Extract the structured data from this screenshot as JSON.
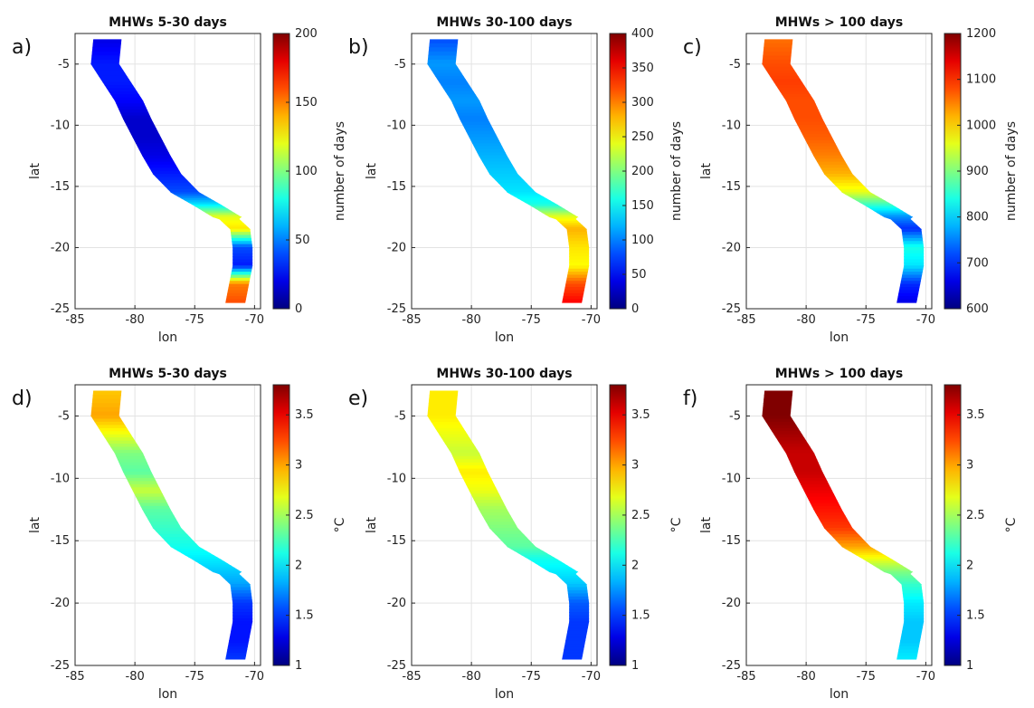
{
  "figure": {
    "shared": {
      "xlabel": "lon",
      "ylabel": "lat",
      "xlim": [
        -85,
        -69.5
      ],
      "ylim": [
        -25,
        -2.5
      ],
      "x_ticks": [
        -85,
        -80,
        -75,
        -70
      ],
      "y_ticks": [
        -5,
        -10,
        -15,
        -20,
        -25
      ],
      "x_tick_labels": [
        "-85",
        "-80",
        "-75",
        "-70"
      ],
      "y_tick_labels": [
        "-5",
        "-10",
        "-15",
        "-20",
        "-25"
      ],
      "grid": true,
      "colormap": "jet"
    },
    "panels": [
      {
        "letter": "a)",
        "title": "MHWs 5-30 days",
        "colorbar_label": "number of days",
        "clim": [
          0,
          200
        ],
        "colorbar_ticks": [
          0,
          50,
          100,
          150,
          200
        ],
        "colorbar_tick_labels": [
          "0",
          "50",
          "100",
          "150",
          "200"
        ],
        "coast_values": [
          20,
          30,
          30,
          25,
          15,
          15,
          20,
          30,
          40,
          70,
          120,
          130,
          40,
          30,
          150,
          160
        ]
      },
      {
        "letter": "b)",
        "title": "MHWs 30-100 days",
        "colorbar_label": "number of days",
        "clim": [
          0,
          400
        ],
        "colorbar_ticks": [
          0,
          50,
          100,
          150,
          200,
          250,
          300,
          350,
          400
        ],
        "colorbar_tick_labels": [
          "0",
          "50",
          "100",
          "150",
          "200",
          "250",
          "300",
          "350",
          "400"
        ],
        "coast_values": [
          80,
          110,
          100,
          110,
          100,
          110,
          120,
          130,
          140,
          160,
          240,
          280,
          260,
          250,
          320,
          350
        ]
      },
      {
        "letter": "c)",
        "title": "MHWs > 100 days",
        "colorbar_label": "number of days",
        "clim": [
          600,
          1200
        ],
        "colorbar_ticks": [
          600,
          700,
          800,
          900,
          1000,
          1100,
          1200
        ],
        "colorbar_tick_labels": [
          "600",
          "700",
          "800",
          "900",
          "1000",
          "1100",
          "1200"
        ],
        "coast_values": [
          1060,
          1080,
          1090,
          1080,
          1080,
          1070,
          1050,
          1020,
          960,
          860,
          760,
          700,
          840,
          810,
          700,
          660
        ]
      },
      {
        "letter": "d)",
        "title": "MHWs 5-30 days",
        "colorbar_label": "°C",
        "clim": [
          1,
          3.8
        ],
        "colorbar_ticks": [
          1,
          1.5,
          2,
          2.5,
          3,
          3.5
        ],
        "colorbar_tick_labels": [
          "1",
          "1.5",
          "2",
          "2.5",
          "3",
          "3.5"
        ],
        "coast_values": [
          2.9,
          3.0,
          2.7,
          2.4,
          2.3,
          2.6,
          2.3,
          2.2,
          2.1,
          2.0,
          1.9,
          1.8,
          1.5,
          1.4,
          1.4,
          1.5
        ]
      },
      {
        "letter": "e)",
        "title": "MHWs 30-100 days",
        "colorbar_label": "°C",
        "clim": [
          1,
          3.8
        ],
        "colorbar_ticks": [
          1,
          1.5,
          2,
          2.5,
          3,
          3.5
        ],
        "colorbar_tick_labels": [
          "1",
          "1.5",
          "2",
          "2.5",
          "3",
          "3.5"
        ],
        "coast_values": [
          2.8,
          2.8,
          2.7,
          2.6,
          2.8,
          2.7,
          2.5,
          2.4,
          2.3,
          2.1,
          2.0,
          1.9,
          1.6,
          1.5,
          1.5,
          1.5
        ]
      },
      {
        "letter": "f)",
        "title": "MHWs > 100 days",
        "colorbar_label": "°C",
        "clim": [
          1,
          3.8
        ],
        "colorbar_ticks": [
          1,
          1.5,
          2,
          2.5,
          3,
          3.5
        ],
        "colorbar_tick_labels": [
          "1",
          "1.5",
          "2",
          "2.5",
          "3",
          "3.5"
        ],
        "coast_values": [
          3.8,
          3.8,
          3.7,
          3.6,
          3.6,
          3.5,
          3.4,
          3.3,
          3.0,
          2.7,
          2.4,
          2.2,
          2.0,
          1.9,
          1.9,
          2.0
        ]
      }
    ]
  },
  "chart_data": {
    "type": "heatmap",
    "xlabel": "lon",
    "ylabel": "lat",
    "xlim": [
      -85,
      -69.5
    ],
    "ylim": [
      -25,
      -2.5
    ],
    "coast_track": {
      "lat": [
        -3,
        -5,
        -6.5,
        -8,
        -9.5,
        -11,
        -12.5,
        -14,
        -15.5,
        -16.5,
        -17.5,
        -18.5,
        -20,
        -21.5,
        -23,
        -24.5
      ],
      "lon": [
        -82.3,
        -82.5,
        -81.5,
        -80.5,
        -79.8,
        -79.0,
        -78.2,
        -77.3,
        -75.8,
        -74.0,
        -72.3,
        -71.2,
        -71.0,
        -71.0,
        -71.3,
        -71.6
      ]
    }
  }
}
